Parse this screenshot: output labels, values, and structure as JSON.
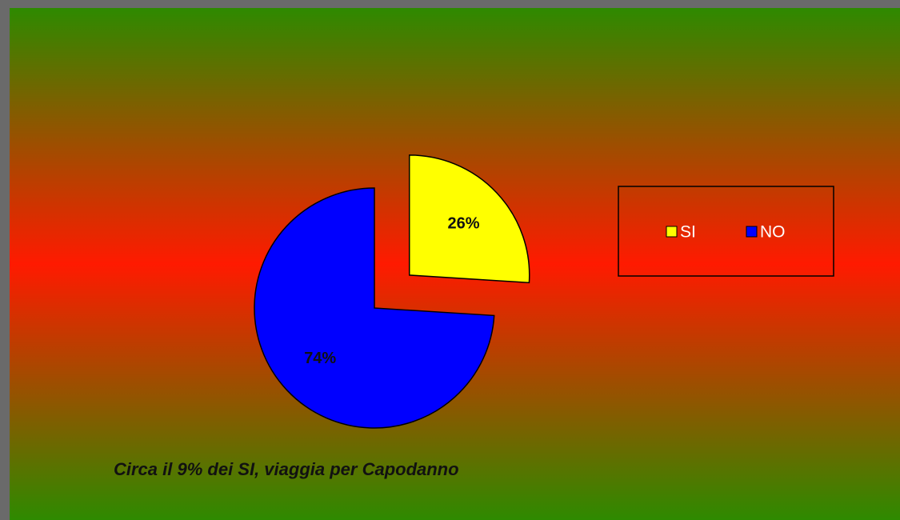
{
  "chart_data": {
    "type": "pie",
    "categories": [
      "SI",
      "NO"
    ],
    "values": [
      26,
      74
    ],
    "value_labels": [
      "26%",
      "74%"
    ],
    "colors": [
      "#ffff00",
      "#0000ff"
    ],
    "explode": [
      true,
      false
    ],
    "annotation": "Circa il 9% dei SI, viaggia per Capodanno",
    "legend": "right"
  }
}
